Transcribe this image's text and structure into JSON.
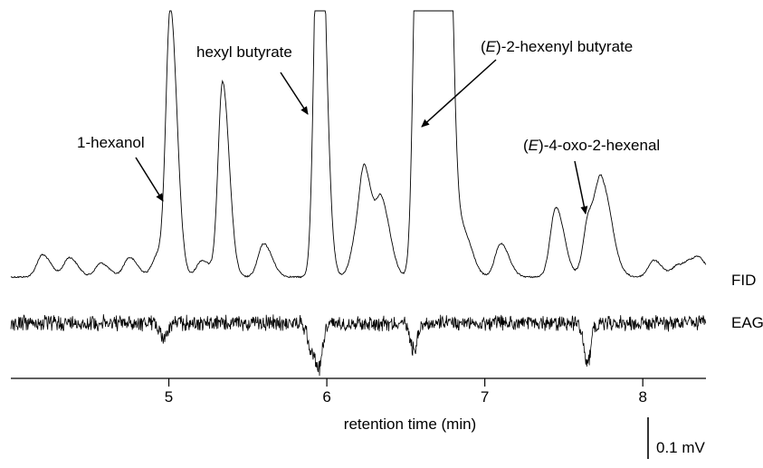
{
  "chart_data": {
    "type": "line",
    "xlabel": "retention time (min)",
    "ylabel": "",
    "x_ticks": [
      5,
      6,
      7,
      8
    ],
    "xlim": [
      4.0,
      8.4
    ],
    "series": [
      {
        "name": "FID",
        "kind": "fid"
      },
      {
        "name": "EAG",
        "kind": "eag"
      }
    ],
    "fid_peaks": [
      {
        "t": 4.2,
        "h": 0.08
      },
      {
        "t": 4.37,
        "h": 0.07
      },
      {
        "t": 4.57,
        "h": 0.05
      },
      {
        "t": 4.75,
        "h": 0.07
      },
      {
        "t": 4.93,
        "h": 0.08
      },
      {
        "t": 5.01,
        "h": 0.95
      },
      {
        "t": 5.21,
        "h": 0.06
      },
      {
        "t": 5.34,
        "h": 0.7
      },
      {
        "t": 5.6,
        "h": 0.12
      },
      {
        "t": 5.95,
        "h": 1.6
      },
      {
        "t": 6.18,
        "h": 0.1
      },
      {
        "t": 6.24,
        "h": 0.35
      },
      {
        "t": 6.35,
        "h": 0.25
      },
      {
        "t": 6.58,
        "h": 1.7
      },
      {
        "t": 6.66,
        "h": 0.82
      },
      {
        "t": 6.7,
        "h": 1.7
      },
      {
        "t": 6.75,
        "h": 1.7
      },
      {
        "t": 6.87,
        "h": 0.15
      },
      {
        "t": 7.1,
        "h": 0.12
      },
      {
        "t": 7.45,
        "h": 0.25
      },
      {
        "t": 7.66,
        "h": 0.22
      },
      {
        "t": 7.74,
        "h": 0.28
      },
      {
        "t": 7.8,
        "h": 0.06
      },
      {
        "t": 8.07,
        "h": 0.06
      },
      {
        "t": 8.22,
        "h": 0.04
      },
      {
        "t": 8.3,
        "h": 0.04
      },
      {
        "t": 8.36,
        "h": 0.05
      }
    ],
    "eag_dips": [
      {
        "t": 4.97,
        "d": 0.35
      },
      {
        "t": 5.9,
        "d": 0.55
      },
      {
        "t": 5.95,
        "d": 1.0
      },
      {
        "t": 6.55,
        "d": 0.6
      },
      {
        "t": 7.65,
        "d": 0.9
      }
    ],
    "annotations": [
      {
        "text": "1-hexanol",
        "x": 4.95
      },
      {
        "text": "hexyl butyrate",
        "x": 5.89
      },
      {
        "text_italic": "E",
        "text": "-2-hexenyl butyrate",
        "x": 6.55
      },
      {
        "text_italic": "E",
        "text": "-4-oxo-2-hexenal",
        "x": 7.63
      }
    ],
    "scale_bar_label": "0.1 mV"
  }
}
